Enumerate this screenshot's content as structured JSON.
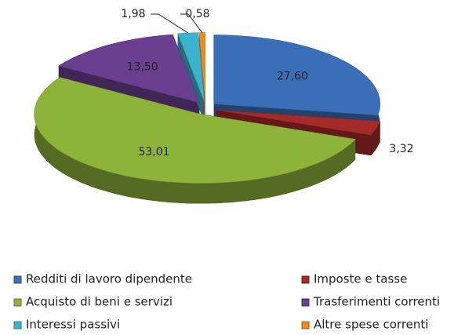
{
  "chart_data": {
    "type": "pie3d",
    "categories": [
      "Redditi di lavoro dipendente",
      "Imposte e tasse",
      "Acquisto di beni e servizi",
      "Trasferimenti correnti",
      "Interessi passivi",
      "Altre spese correnti"
    ],
    "values": [
      27.6,
      3.32,
      53.01,
      13.5,
      1.98,
      0.58
    ],
    "value_labels": [
      "27,60",
      "3,32",
      "53,01",
      "13,50",
      "1,98",
      "0,58"
    ],
    "colors": [
      "#3a6fb8",
      "#a52a2a",
      "#8db33a",
      "#6a3f8f",
      "#3bb3d0",
      "#f08a1e"
    ],
    "legend": "bottom"
  }
}
